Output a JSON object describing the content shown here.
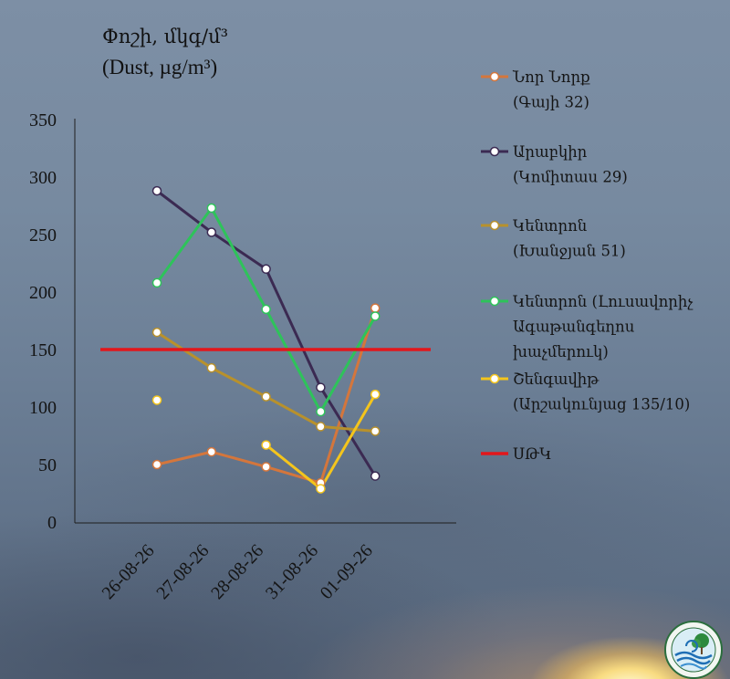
{
  "chart_data": {
    "type": "line",
    "title": "Փոշի, մկգ/մ³",
    "subtitle": "(Dust, µg/m³)",
    "categories": [
      "26-08-26",
      "27-08-26",
      "28-08-26",
      "31-08-26",
      "01-09-26"
    ],
    "ylim": [
      0,
      350
    ],
    "yticks": [
      0,
      50,
      100,
      150,
      200,
      250,
      300,
      350
    ],
    "grid": false,
    "legend_position": "right",
    "series": [
      {
        "name": "Նոր Նորք\n(Գայի 32)",
        "color": "#d4763c",
        "values": [
          50,
          61,
          48,
          34,
          186
        ]
      },
      {
        "name": "Արաբկիր\n(Կոմիտաս 29)",
        "color": "#3b2a52",
        "values": [
          288,
          252,
          220,
          117,
          40
        ]
      },
      {
        "name": "Կենտրոն\n(Խանջյան 51)",
        "color": "#b8912c",
        "values": [
          165,
          134,
          109,
          83,
          79
        ]
      },
      {
        "name": "Կենտրոն (Լուսավորիչ\nԱգաթանգեղոս\nխաչմերուկ)",
        "color": "#2ec35a",
        "values": [
          208,
          273,
          185,
          96,
          179
        ]
      },
      {
        "name": "Շենգավիթ\n(Արշակունյաց 135/10)",
        "color": "#f4c51c",
        "values": [
          106,
          null,
          67,
          29,
          111
        ]
      }
    ],
    "reference_lines": [
      {
        "name": "ՍԹԿ",
        "value": 150,
        "color": "#e3161b"
      }
    ]
  }
}
